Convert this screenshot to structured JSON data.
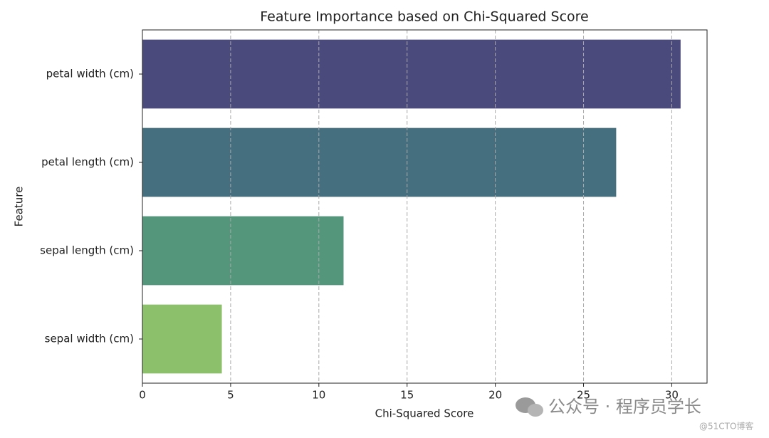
{
  "chart_data": {
    "type": "bar",
    "orientation": "horizontal",
    "title": "Feature Importance based on Chi-Squared Score",
    "xlabel": "Chi-Squared Score",
    "ylabel": "Feature",
    "categories": [
      "petal width (cm)",
      "petal length (cm)",
      "sepal length (cm)",
      "sepal width (cm)"
    ],
    "values": [
      30.5,
      26.85,
      11.4,
      4.5
    ],
    "colors": [
      "#4a4a7c",
      "#456f7f",
      "#53967c",
      "#8cc06b"
    ],
    "xlim": [
      0,
      32
    ],
    "xticks": [
      0,
      5,
      10,
      15,
      20,
      25,
      30
    ],
    "grid": true
  },
  "watermark": {
    "text": "公众号 · 程序员学长",
    "source": "@51CTO博客"
  }
}
